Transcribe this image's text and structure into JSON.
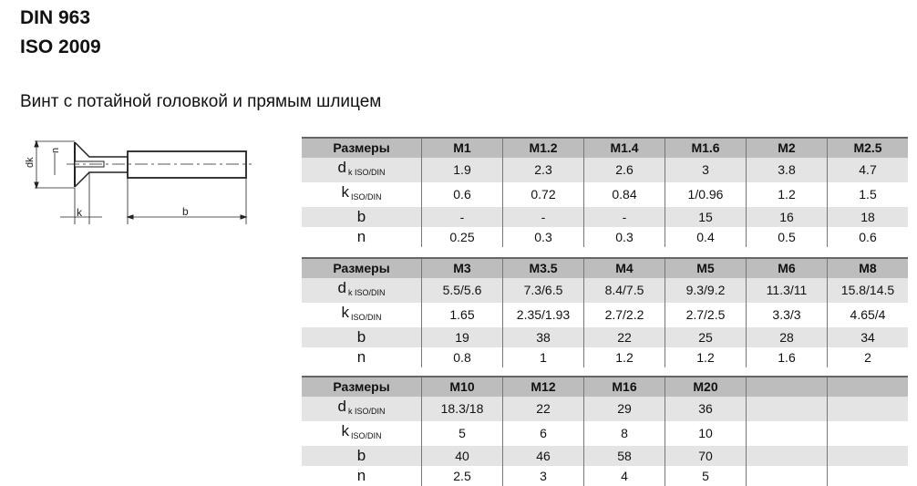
{
  "title_lines": [
    "DIN 963",
    "ISO 2009"
  ],
  "subtitle": "Винт с потайной головкой и прямым шлицем",
  "drawing": {
    "labels": {
      "dk": "dk",
      "n": "n",
      "k": "k",
      "b": "b"
    }
  },
  "tables": [
    {
      "header": [
        "Размеры",
        "M1",
        "M1.2",
        "M1.4",
        "M1.6",
        "M2",
        "M2.5"
      ],
      "rows": [
        {
          "label": "d",
          "label_sub": "k ISO/DIN",
          "values": [
            "1.9",
            "2.3",
            "2.6",
            "3",
            "3.8",
            "4.7"
          ]
        },
        {
          "label": "k",
          "label_sub": "ISO/DIN",
          "values": [
            "0.6",
            "0.72",
            "0.84",
            "1/0.96",
            "1.2",
            "1.5"
          ]
        },
        {
          "label": "b",
          "label_sub": "",
          "values": [
            "-",
            "-",
            "-",
            "15",
            "16",
            "18"
          ]
        },
        {
          "label": "n",
          "label_sub": "",
          "values": [
            "0.25",
            "0.3",
            "0.3",
            "0.4",
            "0.5",
            "0.6"
          ]
        }
      ]
    },
    {
      "header": [
        "Размеры",
        "M3",
        "M3.5",
        "M4",
        "M5",
        "M6",
        "M8"
      ],
      "rows": [
        {
          "label": "d",
          "label_sub": "k ISO/DIN",
          "values": [
            "5.5/5.6",
            "7.3/6.5",
            "8.4/7.5",
            "9.3/9.2",
            "11.3/11",
            "15.8/14.5"
          ]
        },
        {
          "label": "k",
          "label_sub": "ISO/DIN",
          "values": [
            "1.65",
            "2.35/1.93",
            "2.7/2.2",
            "2.7/2.5",
            "3.3/3",
            "4.65/4"
          ]
        },
        {
          "label": "b",
          "label_sub": "",
          "values": [
            "19",
            "38",
            "22",
            "25",
            "28",
            "34"
          ]
        },
        {
          "label": "n",
          "label_sub": "",
          "values": [
            "0.8",
            "1",
            "1.2",
            "1.2",
            "1.6",
            "2"
          ]
        }
      ]
    },
    {
      "header": [
        "Размеры",
        "M10",
        "M12",
        "M16",
        "M20",
        "",
        ""
      ],
      "rows": [
        {
          "label": "d",
          "label_sub": "k ISO/DIN",
          "values": [
            "18.3/18",
            "22",
            "29",
            "36",
            "",
            ""
          ]
        },
        {
          "label": "k",
          "label_sub": "ISO/DIN",
          "values": [
            "5",
            "6",
            "8",
            "10",
            "",
            ""
          ]
        },
        {
          "label": "b",
          "label_sub": "",
          "values": [
            "40",
            "46",
            "58",
            "70",
            "",
            ""
          ]
        },
        {
          "label": "n",
          "label_sub": "",
          "values": [
            "2.5",
            "3",
            "4",
            "5",
            "",
            ""
          ]
        }
      ]
    }
  ]
}
